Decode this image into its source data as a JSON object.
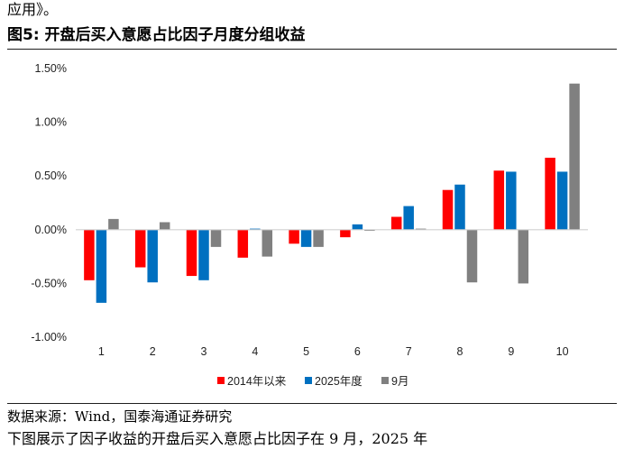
{
  "context": {
    "preceding_text": "应用》。",
    "following_text_cut": "下图展示了因子收益的开盘后买入意愿占比因子在 9 月，2025 年"
  },
  "figure": {
    "title": "图5:  开盘后买入意愿占比因子月度分组收益",
    "source": "数据来源：Wind，国泰海通证券研究"
  },
  "chart_data": {
    "type": "bar",
    "categories": [
      "1",
      "2",
      "3",
      "4",
      "5",
      "6",
      "7",
      "8",
      "9",
      "10"
    ],
    "series": [
      {
        "name": "2014年以来",
        "color": "#ff0000",
        "values": [
          -0.47,
          -0.35,
          -0.43,
          -0.26,
          -0.13,
          -0.07,
          0.12,
          0.37,
          0.55,
          0.67
        ]
      },
      {
        "name": "2025年度",
        "color": "#0070c0",
        "values": [
          -0.68,
          -0.49,
          -0.47,
          0.01,
          -0.16,
          0.05,
          0.22,
          0.42,
          0.54,
          0.54
        ]
      },
      {
        "name": "9月",
        "color": "#808080",
        "values": [
          0.1,
          0.07,
          -0.16,
          -0.25,
          -0.16,
          -0.01,
          0.01,
          -0.49,
          -0.5,
          1.36
        ]
      }
    ],
    "ylim": [
      -1.0,
      1.5
    ],
    "yticks": [
      -1.0,
      -0.5,
      0.0,
      0.5,
      1.0,
      1.5
    ],
    "ytick_labels": [
      "-1.00%",
      "-0.50%",
      "0.00%",
      "0.50%",
      "1.00%",
      "1.50%"
    ],
    "y_unit": "%",
    "grid": false,
    "legend_position": "bottom"
  }
}
